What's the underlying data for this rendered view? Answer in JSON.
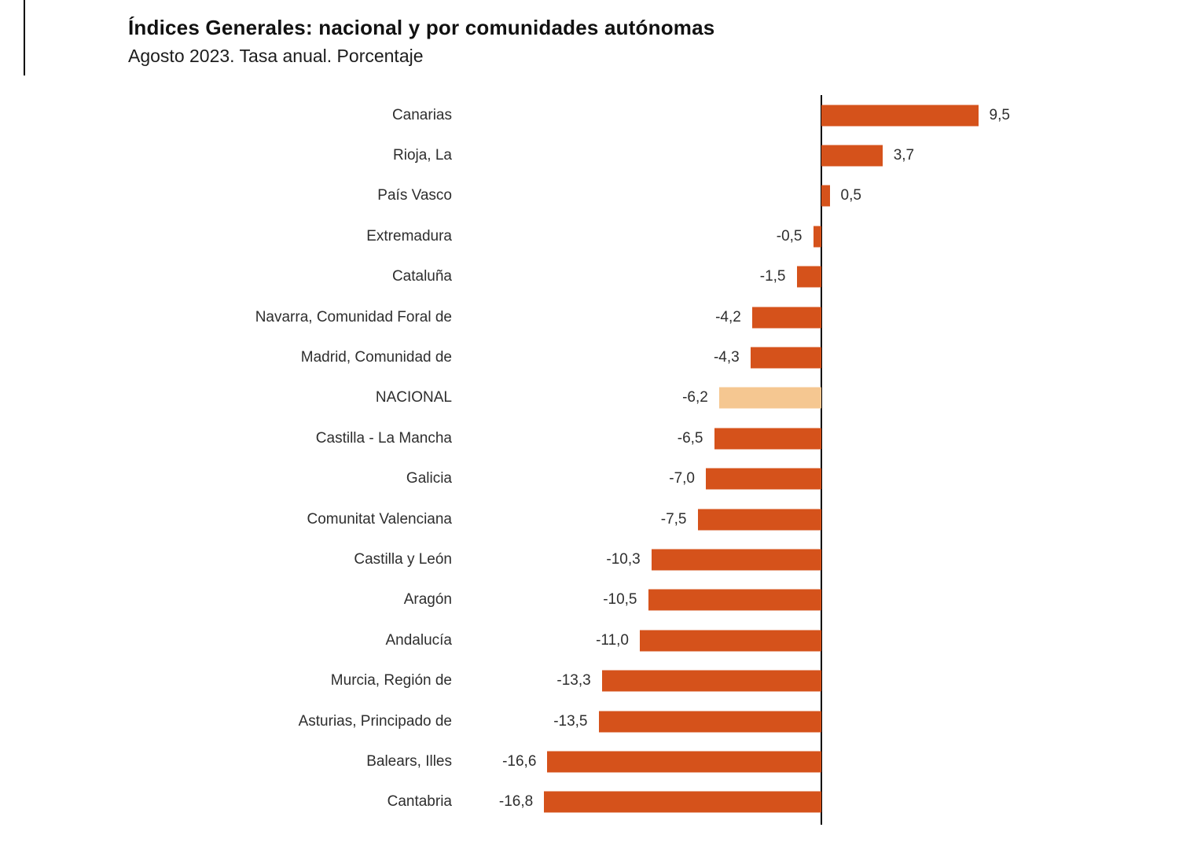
{
  "page": {
    "title": "Índices Generales: nacional y por comunidades autónomas",
    "subtitle": "Agosto 2023. Tasa anual. Porcentaje"
  },
  "chart_data": {
    "type": "bar",
    "orientation": "horizontal",
    "title": "Índices Generales: nacional y por comunidades autónomas",
    "subtitle": "Agosto 2023. Tasa anual. Porcentaje",
    "xlabel": "",
    "ylabel": "",
    "xlim": [
      -20,
      12
    ],
    "grid": false,
    "legend": "none",
    "categories": [
      "Canarias",
      "Rioja, La",
      "País Vasco",
      "Extremadura",
      "Cataluña",
      "Navarra, Comunidad Foral de",
      "Madrid, Comunidad de",
      "NACIONAL",
      "Castilla - La Mancha",
      "Galicia",
      "Comunitat Valenciana",
      "Castilla y León",
      "Aragón",
      "Andalucía",
      "Murcia, Región de",
      "Asturias, Principado de",
      "Balears, Illes",
      "Cantabria"
    ],
    "values": [
      9.5,
      3.7,
      0.5,
      -0.5,
      -1.5,
      -4.2,
      -4.3,
      -6.2,
      -6.5,
      -7.0,
      -7.5,
      -10.3,
      -10.5,
      -11.0,
      -13.3,
      -13.5,
      -16.6,
      -16.8
    ],
    "value_labels": [
      "9,5",
      "3,7",
      "0,5",
      "-0,5",
      "-1,5",
      "-4,2",
      "-4,3",
      "-6,2",
      "-6,5",
      "-7,0",
      "-7,5",
      "-10,3",
      "-10,5",
      "-11,0",
      "-13,3",
      "-13,5",
      "-16,6",
      "-16,8"
    ],
    "highlight_category": "NACIONAL",
    "colors": {
      "bar": "#d5521b",
      "highlight": "#f5c791",
      "axis": "#000000",
      "text": "#2e2e2e"
    }
  }
}
